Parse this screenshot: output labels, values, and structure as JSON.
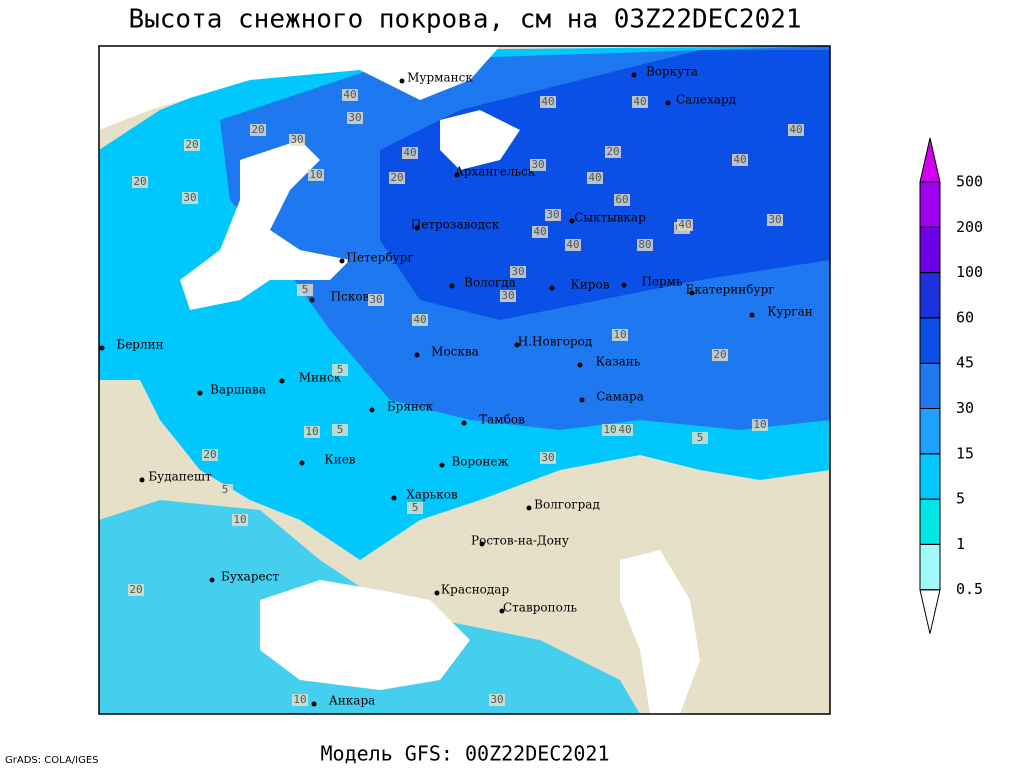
{
  "title": "Высота снежного покрова, см на 03Z22DEC2021",
  "footer": "Модель GFS: 00Z22DEC2021",
  "credit": "GrADS: COLA/IGES",
  "cities": [
    "Мурманск",
    "Воркута",
    "Салехард",
    "Архангельск",
    "Петрозаводск",
    "Сыктывкар",
    "Петербург",
    "Вологда",
    "Киров",
    "Пермь",
    "Екатеринбург",
    "Курган",
    "Псков",
    "Берлин",
    "Н.Новгород",
    "Москва",
    "Казань",
    "Минск",
    "Варшава",
    "Самара",
    "Брянск",
    "Тамбов",
    "Киев",
    "Воронеж",
    "Будапешт",
    "Харьков",
    "Волгоград",
    "Ростов-на-Дону",
    "Бухарест",
    "Краснодар",
    "Ставрополь",
    "Анкара"
  ],
  "contour_labels": [
    "40",
    "30",
    "20",
    "20",
    "30",
    "10",
    "40",
    "20",
    "30",
    "40",
    "40",
    "40",
    "40",
    "20",
    "40",
    "30",
    "20",
    "60",
    "40",
    "40",
    "30",
    "80",
    "60",
    "40",
    "30",
    "30",
    "40",
    "30",
    "10",
    "30",
    "20",
    "5",
    "5",
    "10",
    "5",
    "20",
    "5",
    "10",
    "20",
    "10",
    "30",
    "10",
    "5",
    "40",
    "30",
    "10",
    "5"
  ],
  "legend": {
    "levels": [
      0.5,
      1,
      5,
      15,
      30,
      45,
      60,
      100,
      200,
      500
    ],
    "colors": [
      "#ffffff",
      "#a0fafa",
      "#00e6e6",
      "#00c8ff",
      "#1ea0ff",
      "#1e78f0",
      "#0a50e6",
      "#1e32dc",
      "#6e00e6",
      "#a000f0",
      "#d200f0"
    ]
  }
}
